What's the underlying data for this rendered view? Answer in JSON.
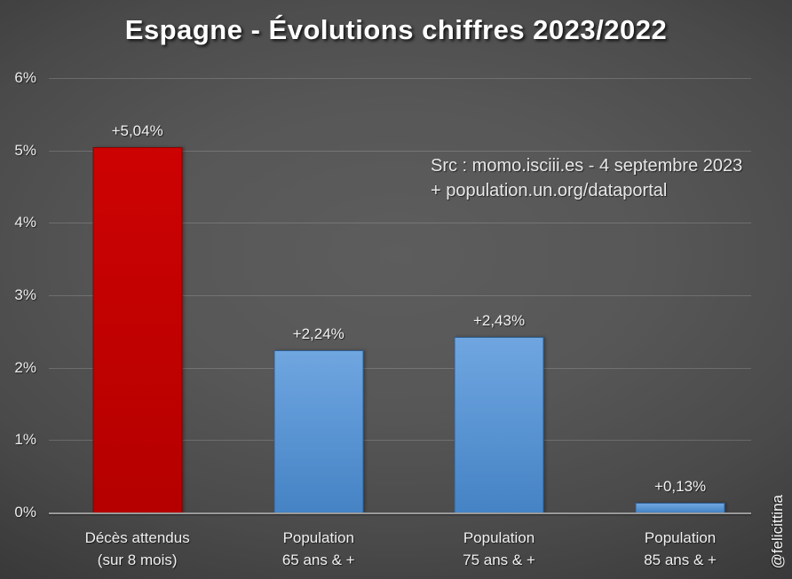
{
  "title": "Espagne - Évolutions chiffres 2023/2022",
  "source": {
    "line1": "Src : momo.isciii.es - 4 septembre 2023",
    "line2": "+ population.un.org/dataportal"
  },
  "watermark": "@felicittina",
  "colors": {
    "background_center": "#5d5d5d",
    "background_edge": "#262626",
    "gridline": "rgba(255,255,255,0.17)",
    "axis_line": "#9a9a9a",
    "text": "#f0f0f0",
    "red": {
      "top": "#cd0202",
      "bottom": "#b50000",
      "border": "#8a0000"
    },
    "blue": {
      "top": "#6fa6e0",
      "bottom": "#4583c5",
      "border": "#2f5f94"
    }
  },
  "chart_data": {
    "type": "bar",
    "title": "Espagne - Évolutions chiffres 2023/2022",
    "xlabel": "",
    "ylabel": "",
    "ylim": [
      0,
      6
    ],
    "grid": true,
    "yticks": [
      "0%",
      "1%",
      "2%",
      "3%",
      "4%",
      "5%",
      "6%"
    ],
    "categories": [
      "Décès attendus (sur 8 mois)",
      "Population 65 ans & +",
      "Population 75 ans & +",
      "Population 85 ans & +"
    ],
    "values": [
      5.04,
      2.24,
      2.43,
      0.13
    ],
    "bars": [
      {
        "category_line1": "Décès attendus",
        "category_line2": "(sur 8 mois)",
        "value": 5.04,
        "value_label": "+5,04%",
        "color": "red"
      },
      {
        "category_line1": "Population",
        "category_line2": "65 ans & +",
        "value": 2.24,
        "value_label": "+2,24%",
        "color": "blue"
      },
      {
        "category_line1": "Population",
        "category_line2": "75 ans & +",
        "value": 2.43,
        "value_label": "+2,43%",
        "color": "blue"
      },
      {
        "category_line1": "Population",
        "category_line2": "85 ans & +",
        "value": 0.13,
        "value_label": "+0,13%",
        "color": "blue"
      }
    ]
  }
}
